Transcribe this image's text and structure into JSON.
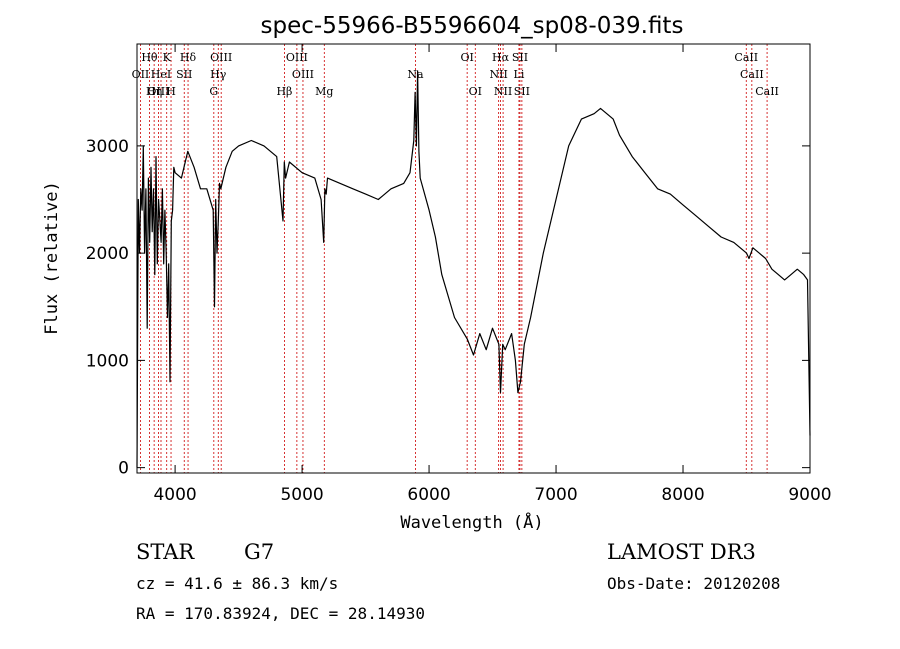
{
  "chart_data": {
    "type": "line",
    "title": "spec-55966-B5596604_sp08-039.fits",
    "xlabel": "Wavelength (Å)",
    "ylabel": "Flux (relative)",
    "xlim": [
      3700,
      9000
    ],
    "ylim": [
      -50,
      3950
    ],
    "x_ticks": [
      4000,
      5000,
      6000,
      7000,
      8000,
      9000
    ],
    "y_ticks": [
      0,
      1000,
      2000,
      3000
    ],
    "line_color": "#000000",
    "marker_color": "#cc0000",
    "series": [
      {
        "x": [
          3700,
          3710,
          3720,
          3730,
          3740,
          3750,
          3760,
          3770,
          3780,
          3790,
          3800,
          3810,
          3820,
          3830,
          3840,
          3850,
          3860,
          3870,
          3880,
          3890,
          3900,
          3910,
          3920,
          3930,
          3940,
          3950,
          3960,
          3970,
          3980,
          3990,
          4000,
          4050,
          4100,
          4150,
          4200,
          4250,
          4300,
          4310,
          4320,
          4330,
          4340,
          4350,
          4360,
          4400,
          4450,
          4500,
          4600,
          4700,
          4800,
          4850,
          4860,
          4870,
          4900,
          5000,
          5100,
          5150,
          5170,
          5180,
          5190,
          5200,
          5300,
          5400,
          5500,
          5600,
          5700,
          5800,
          5850,
          5880,
          5890,
          5900,
          5910,
          5920,
          5930,
          6000,
          6050,
          6100,
          6200,
          6300,
          6350,
          6400,
          6450,
          6500,
          6550,
          6563,
          6580,
          6600,
          6650,
          6680,
          6700,
          6720,
          6750,
          6800,
          6900,
          7000,
          7100,
          7200,
          7300,
          7350,
          7400,
          7450,
          7500,
          7600,
          7700,
          7800,
          7900,
          8000,
          8100,
          8200,
          8300,
          8400,
          8500,
          8520,
          8550,
          8600,
          8650,
          8700,
          8750,
          8800,
          8850,
          8900,
          8950,
          8980,
          9000
        ],
        "y": [
          0,
          2500,
          2000,
          2600,
          2400,
          3000,
          2000,
          2600,
          1300,
          2700,
          2100,
          2800,
          2200,
          2600,
          1800,
          2900,
          1900,
          2500,
          2300,
          2100,
          2600,
          1900,
          2400,
          2000,
          1400,
          1900,
          800,
          2300,
          2400,
          2800,
          2750,
          2700,
          2950,
          2800,
          2600,
          2600,
          2400,
          1500,
          2500,
          2000,
          2300,
          2650,
          2600,
          2800,
          2950,
          3000,
          3050,
          3000,
          2900,
          2300,
          2850,
          2700,
          2850,
          2750,
          2700,
          2500,
          2100,
          2600,
          2550,
          2700,
          2650,
          2600,
          2550,
          2500,
          2600,
          2650,
          2750,
          3050,
          3500,
          3000,
          3700,
          2950,
          2700,
          2400,
          2150,
          1800,
          1400,
          1200,
          1050,
          1250,
          1100,
          1300,
          1150,
          700,
          1150,
          1100,
          1250,
          1000,
          700,
          800,
          1150,
          1400,
          2000,
          2500,
          3000,
          3250,
          3300,
          3350,
          3300,
          3250,
          3100,
          2900,
          2750,
          2600,
          2550,
          2450,
          2350,
          2250,
          2150,
          2100,
          2000,
          1950,
          2050,
          2000,
          1950,
          1850,
          1800,
          1750,
          1800,
          1850,
          1800,
          1750,
          300
        ]
      }
    ],
    "line_markers": [
      {
        "label": "Hθ",
        "wl": 3798,
        "row": 0
      },
      {
        "label": "K",
        "wl": 3934,
        "row": 0
      },
      {
        "label": "Hδ",
        "wl": 4102,
        "row": 0
      },
      {
        "label": "OIII",
        "wl": 4363,
        "row": 0
      },
      {
        "label": "OIII",
        "wl": 4959,
        "row": 0
      },
      {
        "label": "Na",
        "wl": 5893,
        "row": 1
      },
      {
        "label": "OI",
        "wl": 6300,
        "row": 0
      },
      {
        "label": "Hα",
        "wl": 6563,
        "row": 0
      },
      {
        "label": "SII",
        "wl": 6716,
        "row": 0
      },
      {
        "label": "CaII",
        "wl": 8498,
        "row": 0
      },
      {
        "label": "OII",
        "wl": 3727,
        "row": 1
      },
      {
        "label": "HeI",
        "wl": 3889,
        "row": 1
      },
      {
        "label": "SII",
        "wl": 4072,
        "row": 1
      },
      {
        "label": "Hγ",
        "wl": 4340,
        "row": 1
      },
      {
        "label": "OIII",
        "wl": 5007,
        "row": 1
      },
      {
        "label": "NII",
        "wl": 6548,
        "row": 1
      },
      {
        "label": "Li",
        "wl": 6708,
        "row": 1
      },
      {
        "label": "CaII",
        "wl": 8542,
        "row": 1
      },
      {
        "label": "OIII",
        "wl": 3869,
        "row": 2
      },
      {
        "label": "Hη",
        "wl": 3835,
        "row": 2
      },
      {
        "label": "H",
        "wl": 3968,
        "row": 2
      },
      {
        "label": "G",
        "wl": 4305,
        "row": 2
      },
      {
        "label": "Hβ",
        "wl": 4861,
        "row": 2
      },
      {
        "label": "Mg",
        "wl": 5175,
        "row": 2
      },
      {
        "label": "OI",
        "wl": 6364,
        "row": 2
      },
      {
        "label": "NII",
        "wl": 6583,
        "row": 2
      },
      {
        "label": "SII",
        "wl": 6731,
        "row": 2
      },
      {
        "label": "CaII",
        "wl": 8662,
        "row": 2
      }
    ]
  },
  "info": {
    "class_label": "STAR",
    "subclass": "G7",
    "survey": "LAMOST DR3",
    "redshift": "cz = 41.6 ± 86.3 km/s",
    "obs_date": "Obs-Date: 20120208",
    "coords": "RA = 170.83924, DEC =  28.14930"
  }
}
